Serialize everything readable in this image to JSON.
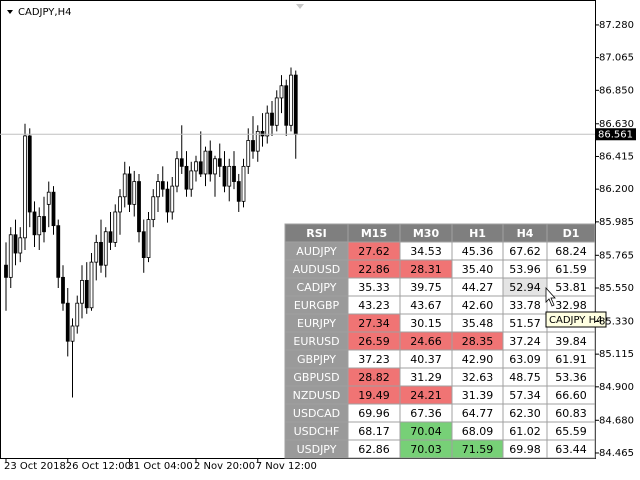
{
  "chart_data": {
    "type": "candlestick",
    "title": "CADJPY,H4",
    "categories": [
      "23 Oct 2018",
      null,
      null,
      null,
      null,
      null,
      null,
      null,
      null,
      null,
      null,
      null,
      null,
      "26 Oct 12:00",
      null,
      null,
      null,
      null,
      null,
      null,
      null,
      null,
      null,
      null,
      null,
      null,
      "31 Oct 04:00",
      null,
      null,
      null,
      null,
      null,
      null,
      null,
      null,
      null,
      null,
      null,
      null,
      null,
      "2 Nov 20:00",
      null,
      null,
      null,
      null,
      null,
      null,
      null,
      null,
      null,
      null,
      null,
      null,
      "7 Nov 12:00",
      null,
      null,
      null,
      null,
      null,
      null,
      null,
      null
    ],
    "open": [
      85.7,
      85.62,
      85.9,
      85.78,
      85.88,
      86.55,
      86.05,
      85.9,
      86.02,
      86.1,
      86.18,
      85.96,
      85.62,
      85.45,
      85.2,
      85.3,
      85.45,
      85.6,
      85.42,
      85.72,
      85.85,
      85.7,
      85.92,
      85.85,
      86.05,
      86.15,
      86.3,
      86.1,
      86.25,
      85.92,
      85.75,
      86.0,
      86.15,
      86.25,
      86.2,
      86.05,
      86.22,
      86.4,
      86.35,
      86.2,
      86.32,
      86.38,
      86.3,
      86.45,
      86.3,
      86.4,
      86.35,
      86.22,
      86.35,
      86.25,
      86.12,
      86.35,
      86.52,
      86.45,
      86.58,
      86.55,
      86.7,
      86.62,
      86.8,
      86.88,
      86.62,
      86.95
    ],
    "high": [
      85.85,
      85.95,
      86.0,
      85.95,
      86.63,
      86.6,
      86.12,
      86.08,
      86.15,
      86.25,
      86.22,
      86.0,
      85.7,
      85.55,
      85.35,
      85.5,
      85.7,
      85.72,
      85.78,
      85.9,
      86.0,
      85.95,
      86.05,
      86.1,
      86.2,
      86.38,
      86.35,
      86.32,
      86.3,
      86.0,
      86.05,
      86.2,
      86.3,
      86.35,
      86.25,
      86.28,
      86.45,
      86.62,
      86.45,
      86.38,
      86.42,
      86.58,
      86.48,
      86.52,
      86.42,
      86.5,
      86.45,
      86.4,
      86.45,
      86.3,
      86.4,
      86.6,
      86.68,
      86.62,
      86.7,
      86.75,
      86.78,
      86.85,
      86.95,
      86.92,
      87.0,
      86.98
    ],
    "low": [
      85.4,
      85.55,
      85.7,
      85.72,
      85.8,
      85.95,
      85.82,
      85.8,
      85.85,
      85.95,
      85.9,
      85.55,
      85.4,
      85.1,
      84.83,
      85.25,
      85.35,
      85.38,
      85.4,
      85.6,
      85.65,
      85.62,
      85.8,
      85.82,
      85.9,
      86.08,
      86.05,
      86.02,
      85.85,
      85.65,
      85.72,
      85.95,
      86.05,
      86.15,
      85.98,
      86.0,
      86.18,
      86.3,
      86.15,
      86.15,
      86.25,
      86.28,
      86.22,
      86.25,
      86.15,
      86.28,
      86.18,
      86.12,
      86.2,
      86.05,
      86.08,
      86.3,
      86.4,
      86.38,
      86.48,
      86.5,
      86.55,
      86.58,
      86.7,
      86.55,
      86.58,
      86.4
    ],
    "close": [
      85.62,
      85.9,
      85.78,
      85.88,
      86.55,
      86.05,
      85.9,
      86.02,
      85.92,
      86.18,
      85.96,
      85.62,
      85.45,
      85.2,
      85.3,
      85.45,
      85.6,
      85.42,
      85.72,
      85.85,
      85.7,
      85.92,
      85.85,
      86.05,
      86.15,
      86.3,
      86.1,
      86.25,
      85.92,
      85.75,
      86.0,
      86.15,
      86.25,
      86.2,
      86.05,
      86.22,
      86.4,
      86.35,
      86.2,
      86.32,
      86.38,
      86.3,
      86.45,
      86.3,
      86.4,
      86.35,
      86.22,
      86.35,
      86.25,
      86.12,
      86.35,
      86.52,
      86.45,
      86.58,
      86.55,
      86.7,
      86.62,
      86.8,
      86.88,
      86.62,
      86.95,
      86.56
    ],
    "up_color": "#ffffff",
    "down_color": "#000000",
    "grid": false,
    "current_price": 86.561,
    "ylim": [
      84.432,
      87.444
    ],
    "yticks": [
      {
        "value": 87.28,
        "label": "87.280"
      },
      {
        "value": 87.065,
        "label": "87.065"
      },
      {
        "value": 86.85,
        "label": "86.850"
      },
      {
        "value": 86.63,
        "label": "86.630"
      },
      {
        "value": 86.415,
        "label": "86.415"
      },
      {
        "value": 86.2,
        "label": "86.200"
      },
      {
        "value": 85.985,
        "label": "85.985"
      },
      {
        "value": 85.765,
        "label": "85.765"
      },
      {
        "value": 85.55,
        "label": "85.550"
      },
      {
        "value": 85.33,
        "label": "85.330"
      },
      {
        "value": 85.115,
        "label": "85.115"
      },
      {
        "value": 84.9,
        "label": "84.900"
      },
      {
        "value": 84.68,
        "label": "84.680"
      },
      {
        "value": 84.465,
        "label": "84.465"
      }
    ]
  },
  "table": {
    "header": [
      "RSI",
      "M15",
      "M30",
      "H1",
      "H4",
      "D1"
    ],
    "header_color": "#7f7f7f",
    "label_color": "#9a9a9a",
    "rows": [
      {
        "name": "AUDJPY",
        "values": [
          "27.62",
          "34.53",
          "45.36",
          "67.62",
          "68.24"
        ],
        "colors": [
          "#f07474",
          "#ffffff",
          "#ffffff",
          "#ffffff",
          "#ffffff"
        ]
      },
      {
        "name": "AUDUSD",
        "values": [
          "22.86",
          "28.31",
          "35.40",
          "53.96",
          "61.59"
        ],
        "colors": [
          "#f07474",
          "#f07474",
          "#ffffff",
          "#ffffff",
          "#ffffff"
        ]
      },
      {
        "name": "CADJPY",
        "values": [
          "35.33",
          "39.75",
          "44.27",
          "52.94",
          "53.81"
        ],
        "colors": [
          "#ffffff",
          "#ffffff",
          "#ffffff",
          "#e4e4e4",
          "#ffffff"
        ]
      },
      {
        "name": "EURGBP",
        "values": [
          "43.23",
          "43.67",
          "42.60",
          "33.78",
          "32.98"
        ],
        "colors": [
          "#ffffff",
          "#ffffff",
          "#ffffff",
          "#ffffff",
          "#ffffff"
        ]
      },
      {
        "name": "EURJPY",
        "values": [
          "27.34",
          "30.15",
          "35.48",
          "51.57",
          null
        ],
        "colors": [
          "#f07474",
          "#ffffff",
          "#ffffff",
          "#ffffff",
          "#ffffff"
        ]
      },
      {
        "name": "EURUSD",
        "values": [
          "26.59",
          "24.66",
          "28.35",
          "37.24",
          "39.84"
        ],
        "colors": [
          "#f07474",
          "#f07474",
          "#f07474",
          "#ffffff",
          "#ffffff"
        ]
      },
      {
        "name": "GBPJPY",
        "values": [
          "37.23",
          "40.37",
          "42.90",
          "63.09",
          "61.91"
        ],
        "colors": [
          "#ffffff",
          "#ffffff",
          "#ffffff",
          "#ffffff",
          "#ffffff"
        ]
      },
      {
        "name": "GBPUSD",
        "values": [
          "28.82",
          "31.29",
          "32.63",
          "48.75",
          "53.36"
        ],
        "colors": [
          "#f07474",
          "#ffffff",
          "#ffffff",
          "#ffffff",
          "#ffffff"
        ]
      },
      {
        "name": "NZDUSD",
        "values": [
          "19.49",
          "24.21",
          "31.39",
          "57.34",
          "66.60"
        ],
        "colors": [
          "#f07474",
          "#f07474",
          "#ffffff",
          "#ffffff",
          "#ffffff"
        ]
      },
      {
        "name": "USDCAD",
        "values": [
          "69.96",
          "67.36",
          "64.77",
          "62.30",
          "60.83"
        ],
        "colors": [
          "#ffffff",
          "#ffffff",
          "#ffffff",
          "#ffffff",
          "#ffffff"
        ]
      },
      {
        "name": "USDCHF",
        "values": [
          "68.17",
          "70.04",
          "68.09",
          "61.02",
          "65.59"
        ],
        "colors": [
          "#ffffff",
          "#77d077",
          "#ffffff",
          "#ffffff",
          "#ffffff"
        ]
      },
      {
        "name": "USDJPY",
        "values": [
          "62.86",
          "70.03",
          "71.59",
          "69.98",
          "63.44"
        ],
        "colors": [
          "#ffffff",
          "#77d077",
          "#77d077",
          "#ffffff",
          "#ffffff"
        ]
      }
    ],
    "tooltip": "CADJPY H4"
  }
}
